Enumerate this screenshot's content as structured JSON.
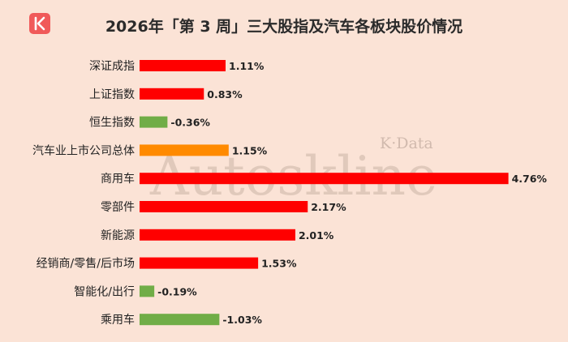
{
  "brand_icon": "k-logo-icon",
  "watermark": {
    "main": "Autoskline",
    "sub": "K·Data"
  },
  "colors": {
    "background": "#fbe3d6",
    "positive": "#ff0000",
    "negative": "#70ad47",
    "highlight": "#ff8a00",
    "logo": "#f05a5a",
    "text": "#222222",
    "watermark": "#bfa89c"
  },
  "chart_data": {
    "type": "bar",
    "orientation": "horizontal",
    "title": "2026年「第 3 周」三大股指及汽车各板块股价情况",
    "categories": [
      "深证成指",
      "上证指数",
      "恒生指数",
      "汽车业上市公司总体",
      "商用车",
      "零部件",
      "新能源",
      "经销商/零售/后市场",
      "智能化/出行",
      "乘用车"
    ],
    "values": [
      1.11,
      0.83,
      -0.36,
      1.15,
      4.76,
      2.17,
      2.01,
      1.53,
      -0.19,
      -1.03
    ],
    "labels": [
      "1.11%",
      "0.83%",
      "-0.36%",
      "1.15%",
      "4.76%",
      "2.17%",
      "2.01%",
      "1.53%",
      "-0.19%",
      "-1.03%"
    ],
    "highlight_category": "汽车业上市公司总体",
    "negative_bars_drawn_by_magnitude": true,
    "grid": false,
    "legend": "none"
  }
}
